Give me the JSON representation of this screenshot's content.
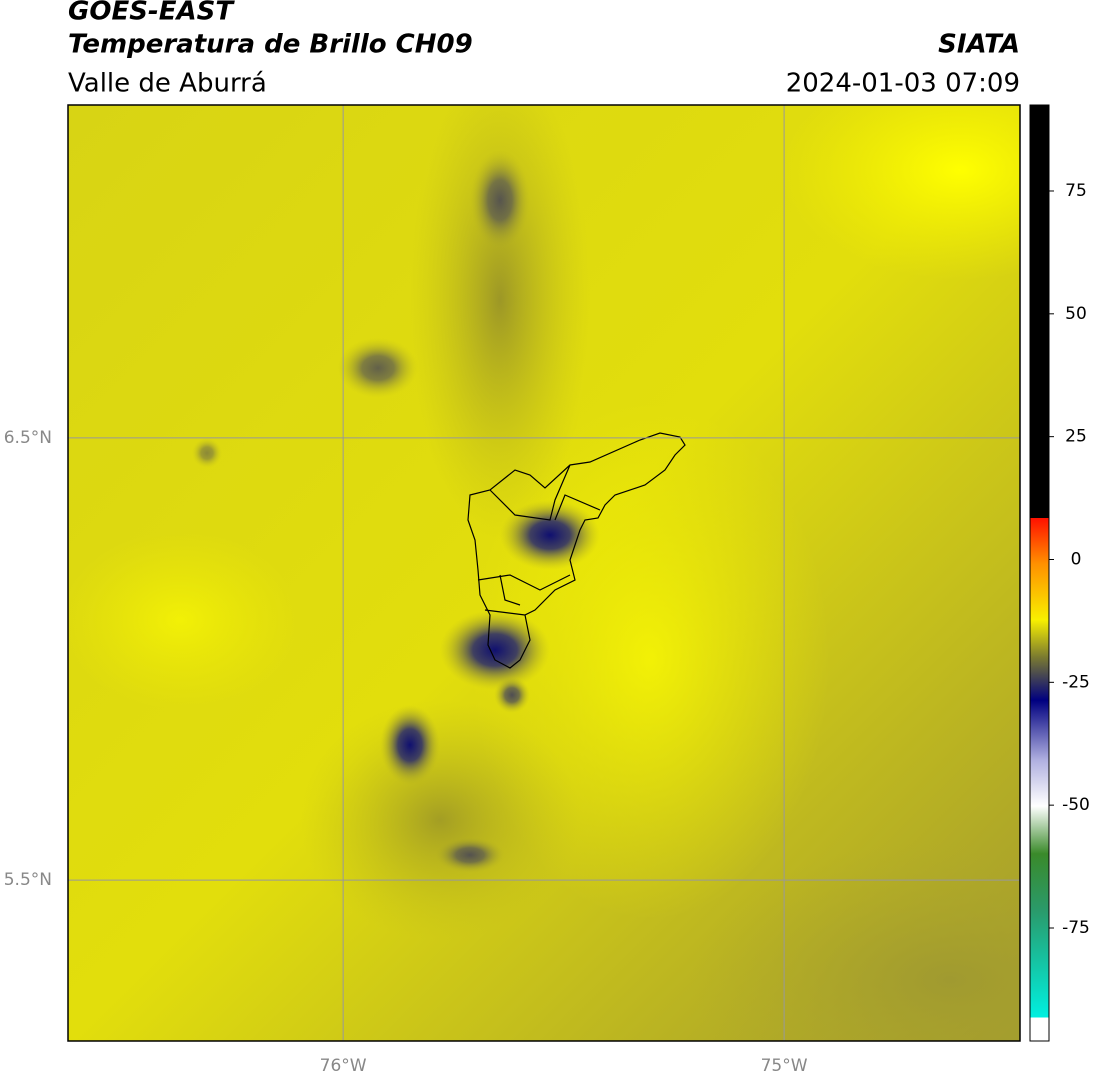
{
  "header": {
    "title": "GOES-EAST",
    "subtitle": "Temperatura de Brillo CH09",
    "region": "Valle de Aburrá",
    "source": "SIATA",
    "datetime": "2024-01-03 07:09"
  },
  "map": {
    "xlim": [
      -76.624,
      -74.465
    ],
    "ylim": [
      5.136,
      7.253
    ],
    "xticks": [
      {
        "value": -76,
        "label": "76°W"
      },
      {
        "value": -75,
        "label": "75°W"
      }
    ],
    "yticks": [
      {
        "value": 6.5,
        "label": "6.5°N"
      },
      {
        "value": 5.5,
        "label": "5.5°N"
      }
    ],
    "grid": true
  },
  "colorbar": {
    "lim": [
      -98,
      92.5
    ],
    "ticks": [
      75,
      50,
      25,
      0,
      -25,
      -50,
      -75
    ]
  }
}
